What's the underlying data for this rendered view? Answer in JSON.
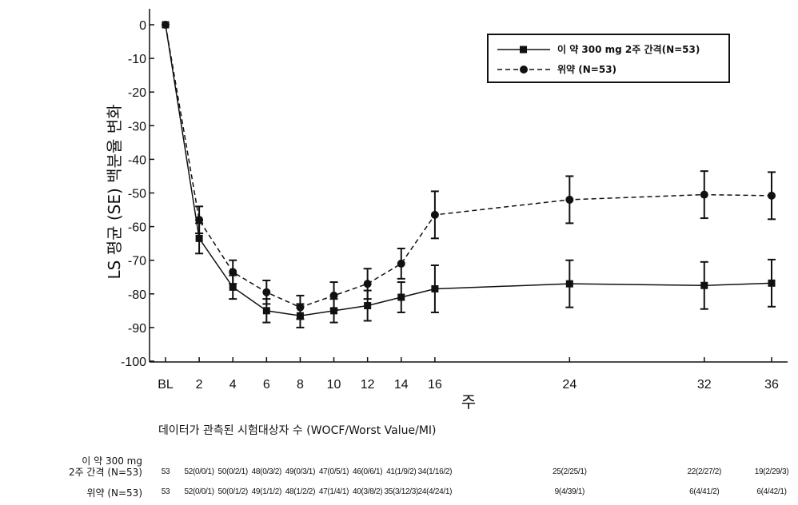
{
  "chart_data": {
    "type": "line",
    "xlabel": "주",
    "ylabel": "LS 평균 (SE) 백분율 변화",
    "x_categories": [
      "BL",
      "2",
      "4",
      "6",
      "8",
      "10",
      "12",
      "14",
      "16",
      "24",
      "32",
      "36"
    ],
    "x_numeric": [
      0,
      2,
      4,
      6,
      8,
      10,
      12,
      14,
      16,
      24,
      32,
      36
    ],
    "yticks": [
      0,
      -10,
      -20,
      -30,
      -40,
      -50,
      -60,
      -70,
      -80,
      -90,
      -100
    ],
    "ylim": [
      -100,
      0
    ],
    "grid": false,
    "legend_position": "top-right",
    "series": [
      {
        "name": "이 약 300 mg 2주 간격(N=53)",
        "marker": "square",
        "line_style": "solid",
        "values": [
          0,
          -63.5,
          -78,
          -85,
          -86.5,
          -85,
          -83.5,
          -81,
          -78.5,
          -77,
          -77.5,
          -76.8
        ],
        "errors": [
          0,
          4.5,
          3.5,
          3.5,
          3.5,
          3.5,
          4.5,
          4.5,
          7,
          7,
          7,
          7
        ]
      },
      {
        "name": "위약 (N=53)",
        "marker": "circle",
        "line_style": "dashed",
        "values": [
          0,
          -58,
          -73.5,
          -79.5,
          -84,
          -80.5,
          -77,
          -71,
          -56.5,
          -52,
          -50.5,
          -50.8
        ],
        "errors": [
          0,
          4,
          3.5,
          3.5,
          3.5,
          4,
          4.5,
          4.5,
          7,
          7,
          7,
          7
        ]
      }
    ]
  },
  "counts_table": {
    "caption": "데이터가 관측된 시험대상자 수 (WOCF/Worst Value/MI)",
    "rows": [
      {
        "label_line1": "이 약 300 mg",
        "label_line2": "2주 간격 (N=53)",
        "values": [
          "53",
          "52(0/0/1)",
          "50(0/2/1)",
          "48(0/3/2)",
          "49(0/3/1)",
          "47(0/5/1)",
          "46(0/6/1)",
          "41(1/9/2)",
          "34(1/16/2)",
          "25(2/25/1)",
          "22(2/27/2)",
          "19(2/29/3)"
        ]
      },
      {
        "label_line1": "위약 (N=53)",
        "label_line2": "",
        "values": [
          "53",
          "52(0/0/1)",
          "50(0/1/2)",
          "49(1/1/2)",
          "48(1/2/2)",
          "47(1/4/1)",
          "40(3/8/2)",
          "35(3/12/3)",
          "24(4/24/1)",
          "9(4/39/1)",
          "6(4/41/2)",
          "6(4/42/1)"
        ]
      }
    ]
  }
}
